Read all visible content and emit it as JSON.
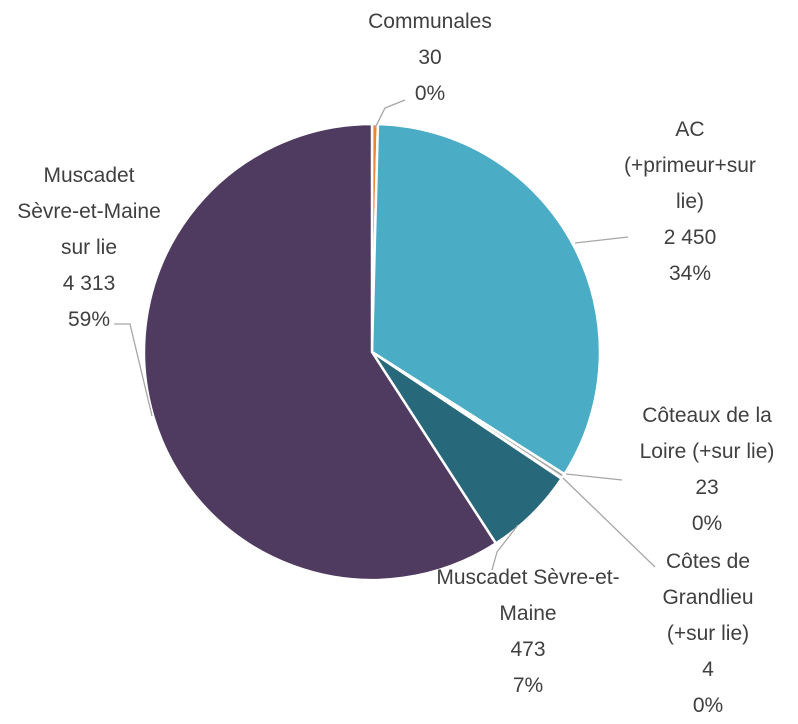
{
  "chart_data": {
    "type": "pie",
    "categories": [
      "Communales",
      "AC (+primeur+sur lie)",
      "Côteaux de la Loire (+sur lie)",
      "Côtes de Grandlieu (+sur lie)",
      "Muscadet Sèvre-et-Maine",
      "Muscadet Sèvre-et-Maine sur lie"
    ],
    "values": [
      30,
      2450,
      23,
      4,
      473,
      4313
    ],
    "value_labels": [
      "30",
      "2 450",
      "23",
      "4",
      "473",
      "4 313"
    ],
    "percent_labels": [
      "0%",
      "34%",
      "0%",
      "0%",
      "7%",
      "59%"
    ],
    "colors": [
      "#e8853d",
      "#4bacc6",
      "#a5a5a5",
      "#c9c9c9",
      "#27687a",
      "#4e3b5f"
    ]
  }
}
